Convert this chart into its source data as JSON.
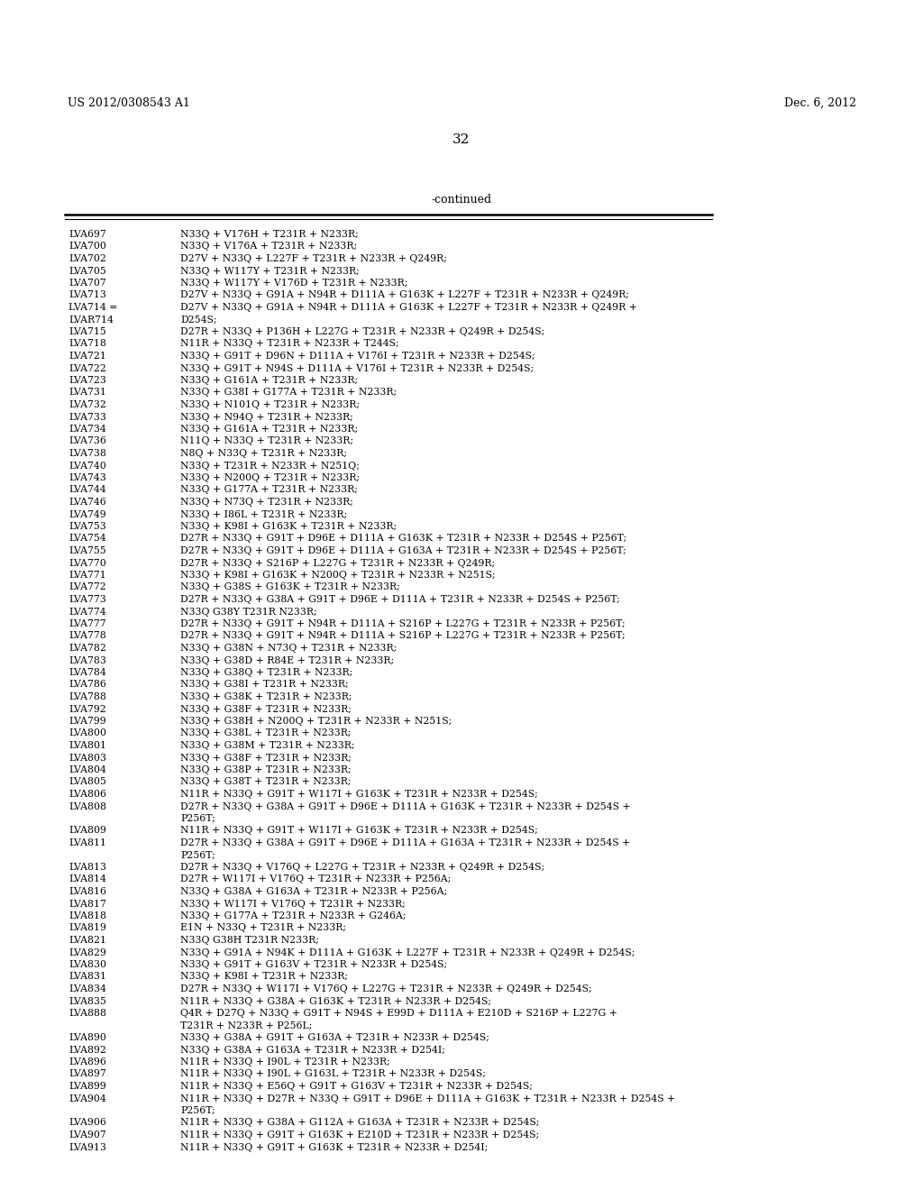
{
  "header_left": "US 2012/0308543 A1",
  "header_right": "Dec. 6, 2012",
  "page_number": "32",
  "continued_label": "-continued",
  "background_color": "#ffffff",
  "text_color": "#000000",
  "entries": [
    [
      "LVA697",
      "N33Q + V176H + T231R + N233R;"
    ],
    [
      "LVA700",
      "N33Q + V176A + T231R + N233R;"
    ],
    [
      "LVA702",
      "D27V + N33Q + L227F + T231R + N233R + Q249R;"
    ],
    [
      "LVA705",
      "N33Q + W117Y + T231R + N233R;"
    ],
    [
      "LVA707",
      "N33Q + W117Y + V176D + T231R + N233R;"
    ],
    [
      "LVA713",
      "D27V + N33Q + G91A + N94R + D111A + G163K + L227F + T231R + N233R + Q249R;"
    ],
    [
      "LVA714 =\nLVAR714",
      "D27V + N33Q + G91A + N94R + D111A + G163K + L227F + T231R + N233R + Q249R +\nD254S;"
    ],
    [
      "LVA715",
      "D27R + N33Q + P136H + L227G + T231R + N233R + Q249R + D254S;"
    ],
    [
      "LVA718",
      "N11R + N33Q + T231R + N233R + T244S;"
    ],
    [
      "LVA721",
      "N33Q + G91T + D96N + D111A + V176I + T231R + N233R + D254S;"
    ],
    [
      "LVA722",
      "N33Q + G91T + N94S + D111A + V176I + T231R + N233R + D254S;"
    ],
    [
      "LVA723",
      "N33Q + G161A + T231R + N233R;"
    ],
    [
      "LVA731",
      "N33Q + G38I + G177A + T231R + N233R;"
    ],
    [
      "LVA732",
      "N33Q + N101Q + T231R + N233R;"
    ],
    [
      "LVA733",
      "N33Q + N94Q + T231R + N233R;"
    ],
    [
      "LVA734",
      "N33Q + G161A + T231R + N233R;"
    ],
    [
      "LVA736",
      "N11Q + N33Q + T231R + N233R;"
    ],
    [
      "LVA738",
      "N8Q + N33Q + T231R + N233R;"
    ],
    [
      "LVA740",
      "N33Q + T231R + N233R + N251Q;"
    ],
    [
      "LVA743",
      "N33Q + N200Q + T231R + N233R;"
    ],
    [
      "LVA744",
      "N33Q + G177A + T231R + N233R;"
    ],
    [
      "LVA746",
      "N33Q + N73Q + T231R + N233R;"
    ],
    [
      "LVA749",
      "N33Q + I86L + T231R + N233R;"
    ],
    [
      "LVA753",
      "N33Q + K98I + G163K + T231R + N233R;"
    ],
    [
      "LVA754",
      "D27R + N33Q + G91T + D96E + D111A + G163K + T231R + N233R + D254S + P256T;"
    ],
    [
      "LVA755",
      "D27R + N33Q + G91T + D96E + D111A + G163A + T231R + N233R + D254S + P256T;"
    ],
    [
      "LVA770",
      "D27R + N33Q + S216P + L227G + T231R + N233R + Q249R;"
    ],
    [
      "LVA771",
      "N33Q + K98I + G163K + N200Q + T231R + N233R + N251S;"
    ],
    [
      "LVA772",
      "N33Q + G38S + G163K + T231R + N233R;"
    ],
    [
      "LVA773",
      "D27R + N33Q + G38A + G91T + D96E + D111A + T231R + N233R + D254S + P256T;"
    ],
    [
      "LVA774",
      "N33Q G38Y T231R N233R;"
    ],
    [
      "LVA777",
      "D27R + N33Q + G91T + N94R + D111A + S216P + L227G + T231R + N233R + P256T;"
    ],
    [
      "LVA778",
      "D27R + N33Q + G91T + N94R + D111A + S216P + L227G + T231R + N233R + P256T;"
    ],
    [
      "LVA782",
      "N33Q + G38N + N73Q + T231R + N233R;"
    ],
    [
      "LVA783",
      "N33Q + G38D + R84E + T231R + N233R;"
    ],
    [
      "LVA784",
      "N33Q + G38Q + T231R + N233R;"
    ],
    [
      "LVA786",
      "N33Q + G38I + T231R + N233R;"
    ],
    [
      "LVA788",
      "N33Q + G38K + T231R + N233R;"
    ],
    [
      "LVA792",
      "N33Q + G38F + T231R + N233R;"
    ],
    [
      "LVA799",
      "N33Q + G38H + N200Q + T231R + N233R + N251S;"
    ],
    [
      "LVA800",
      "N33Q + G38L + T231R + N233R;"
    ],
    [
      "LVA801",
      "N33Q + G38M + T231R + N233R;"
    ],
    [
      "LVA803",
      "N33Q + G38F + T231R + N233R;"
    ],
    [
      "LVA804",
      "N33Q + G38P + T231R + N233R;"
    ],
    [
      "LVA805",
      "N33Q + G38T + T231R + N233R;"
    ],
    [
      "LVA806",
      "N11R + N33Q + G91T + W117I + G163K + T231R + N233R + D254S;"
    ],
    [
      "LVA808",
      "D27R + N33Q + G38A + G91T + D96E + D111A + G163K + T231R + N233R + D254S +\nP256T;"
    ],
    [
      "LVA809",
      "N11R + N33Q + G91T + W117I + G163K + T231R + N233R + D254S;"
    ],
    [
      "LVA811",
      "D27R + N33Q + G38A + G91T + D96E + D111A + G163A + T231R + N233R + D254S +\nP256T;"
    ],
    [
      "LVA813",
      "D27R + N33Q + V176Q + L227G + T231R + N233R + Q249R + D254S;"
    ],
    [
      "LVA814",
      "D27R + W117I + V176Q + T231R + N233R + P256A;"
    ],
    [
      "LVA816",
      "N33Q + G38A + G163A + T231R + N233R + P256A;"
    ],
    [
      "LVA817",
      "N33Q + W117I + V176Q + T231R + N233R;"
    ],
    [
      "LVA818",
      "N33Q + G177A + T231R + N233R + G246A;"
    ],
    [
      "LVA819",
      "E1N + N33Q + T231R + N233R;"
    ],
    [
      "LVA821",
      "N33Q G38H T231R N233R;"
    ],
    [
      "LVA829",
      "N33Q + G91A + N94K + D111A + G163K + L227F + T231R + N233R + Q249R + D254S;"
    ],
    [
      "LVA830",
      "N33Q + G91T + G163V + T231R + N233R + D254S;"
    ],
    [
      "LVA831",
      "N33Q + K98I + T231R + N233R;"
    ],
    [
      "LVA834",
      "D27R + N33Q + W117I + V176Q + L227G + T231R + N233R + Q249R + D254S;"
    ],
    [
      "LVA835",
      "N11R + N33Q + G38A + G163K + T231R + N233R + D254S;"
    ],
    [
      "LVA888",
      "Q4R + D27Q + N33Q + G91T + N94S + E99D + D111A + E210D + S216P + L227G +\nT231R + N233R + P256L;"
    ],
    [
      "LVA890",
      "N33Q + G38A + G91T + G163A + T231R + N233R + D254S;"
    ],
    [
      "LVA892",
      "N33Q + G38A + G163A + T231R + N233R + D254I;"
    ],
    [
      "LVA896",
      "N11R + N33Q + I90L + T231R + N233R;"
    ],
    [
      "LVA897",
      "N11R + N33Q + I90L + G163L + T231R + N233R + D254S;"
    ],
    [
      "LVA899",
      "N11R + N33Q + E56Q + G91T + G163V + T231R + N233R + D254S;"
    ],
    [
      "LVA904",
      "N11R + N33Q + D27R + N33Q + G91T + D96E + D111A + G163K + T231R + N233R + D254S +\nP256T;"
    ],
    [
      "LVA906",
      "N11R + N33Q + G38A + G112A + G163A + T231R + N233R + D254S;"
    ],
    [
      "LVA907",
      "N11R + N33Q + G91T + G163K + E210D + T231R + N233R + D254S;"
    ],
    [
      "LVA913",
      "N11R + N33Q + G91T + G163K + T231R + N233R + D254I;"
    ]
  ]
}
